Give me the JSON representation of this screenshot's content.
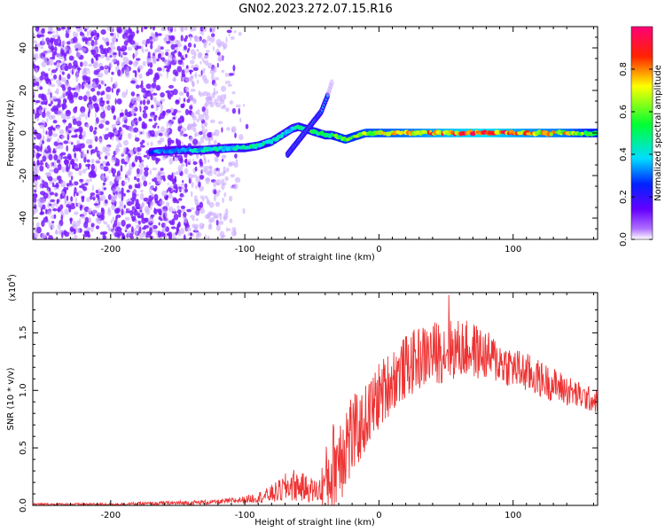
{
  "title": "GN02.2023.272.07.15.R16",
  "chart_data": [
    {
      "type": "heatmap",
      "xlabel": "Height of straight line (km)",
      "ylabel": "Frequency (Hz)",
      "xlim": [
        -258,
        163
      ],
      "ylim": [
        -50,
        50
      ],
      "xticks": [
        -200,
        -100,
        0,
        100
      ],
      "yticks": [
        -40,
        -20,
        0,
        20,
        40
      ],
      "ridge": {
        "x": [
          -170,
          -150,
          -130,
          -110,
          -100,
          -90,
          -80,
          -75,
          -70,
          -65,
          -60,
          -55,
          -50,
          -45,
          -40,
          -35,
          -30,
          -25,
          -20,
          -15,
          -10,
          0,
          20,
          50,
          80,
          110,
          140,
          163
        ],
        "y": [
          -9,
          -8,
          -8,
          -7,
          -7,
          -6,
          -4,
          -2,
          0,
          2,
          3,
          2,
          1,
          0,
          -1,
          -1,
          -2,
          -3,
          -2,
          -1,
          0,
          0,
          0,
          0,
          0,
          0,
          0,
          0
        ],
        "amplitude": [
          0.3,
          0.35,
          0.4,
          0.42,
          0.45,
          0.45,
          0.45,
          0.45,
          0.4,
          0.4,
          0.45,
          0.45,
          0.5,
          0.5,
          0.5,
          0.5,
          0.55,
          0.6,
          0.6,
          0.6,
          0.65,
          0.65,
          0.7,
          0.8,
          0.85,
          0.75,
          0.7,
          0.55
        ]
      },
      "branch": {
        "x": [
          -68,
          -63,
          -58,
          -53,
          -48,
          -43,
          -38,
          -35
        ],
        "y": [
          -10,
          -6,
          -2,
          2,
          6,
          10,
          18,
          24
        ]
      },
      "colorbar": {
        "label": "Normalized spectral amplitude",
        "ticks": [
          "0.0",
          "0.2",
          "0.4",
          "0.6",
          "0.8"
        ],
        "range": [
          0,
          1
        ],
        "colors": [
          "#ffffff",
          "#8000ff",
          "#0000ff",
          "#00ffff",
          "#00ff00",
          "#ffff00",
          "#ff0000",
          "#ff0080"
        ]
      }
    },
    {
      "type": "line",
      "xlabel": "Height of straight line (km)",
      "ylabel": "SNR (10 * v/v)",
      "multiplier_label": "(x10",
      "multiplier_exp": "4",
      "multiplier_close": ")",
      "xlim": [
        -258,
        163
      ],
      "ylim": [
        0,
        1.85
      ],
      "xticks": [
        -200,
        -100,
        0,
        100
      ],
      "yticks": [
        "0.0",
        "0.5",
        "1.0",
        "1.5"
      ],
      "color": "#ee3333",
      "envelope": {
        "x": [
          -258,
          -200,
          -150,
          -120,
          -100,
          -85,
          -75,
          -65,
          -55,
          -45,
          -40,
          -35,
          -30,
          -25,
          -20,
          -15,
          -10,
          0,
          10,
          20,
          30,
          40,
          50,
          60,
          70,
          80,
          90,
          100,
          110,
          120,
          130,
          140,
          150,
          163
        ],
        "mean": [
          0.01,
          0.01,
          0.02,
          0.03,
          0.05,
          0.08,
          0.12,
          0.18,
          0.15,
          0.12,
          0.2,
          0.3,
          0.45,
          0.55,
          0.6,
          0.65,
          0.75,
          0.95,
          1.1,
          1.2,
          1.28,
          1.32,
          1.35,
          1.36,
          1.35,
          1.3,
          1.25,
          1.2,
          1.15,
          1.1,
          1.05,
          1.0,
          0.95,
          0.9
        ],
        "spread": [
          0.01,
          0.01,
          0.02,
          0.02,
          0.03,
          0.06,
          0.1,
          0.15,
          0.12,
          0.1,
          0.3,
          0.4,
          0.45,
          0.45,
          0.4,
          0.3,
          0.3,
          0.3,
          0.28,
          0.28,
          0.28,
          0.28,
          0.28,
          0.26,
          0.25,
          0.22,
          0.2,
          0.18,
          0.18,
          0.16,
          0.15,
          0.14,
          0.12,
          0.1
        ]
      },
      "peak": {
        "x": 52,
        "y": 1.83
      }
    }
  ]
}
